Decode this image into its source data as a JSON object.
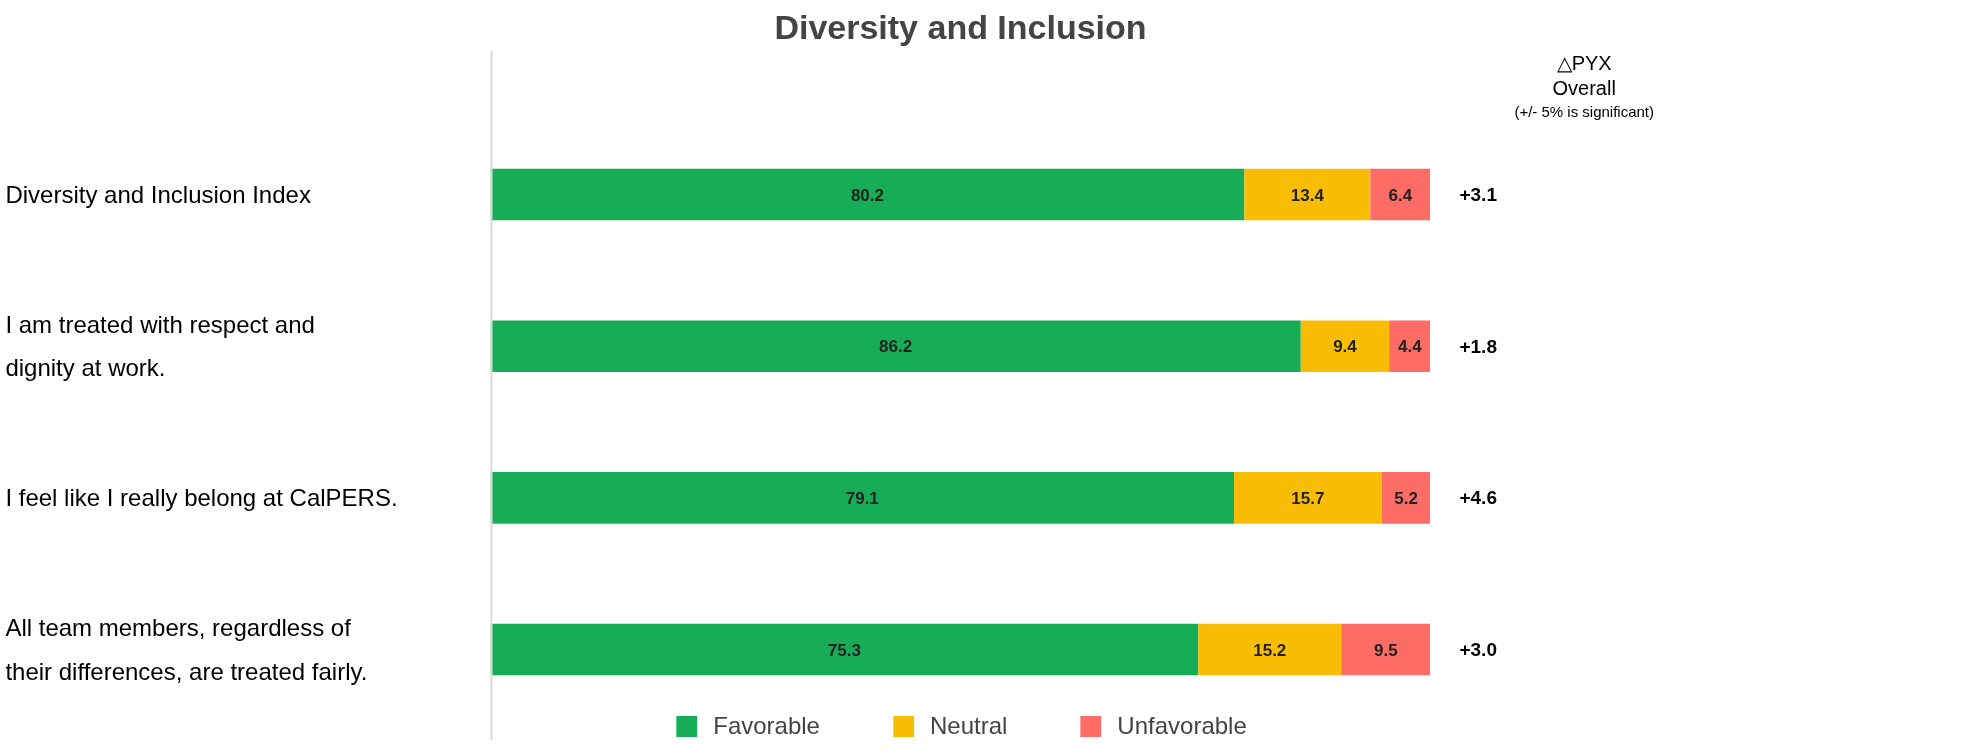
{
  "chart_data": {
    "type": "bar",
    "orientation": "horizontal",
    "stacked": true,
    "title": "Diversity and Inclusion",
    "categories": [
      "Diversity and Inclusion Index",
      "I am treated with respect and\ndignity at work.",
      "I feel like I really belong at CalPERS.",
      "All team members, regardless of\ntheir differences, are treated fairly."
    ],
    "series": [
      {
        "name": "Favorable",
        "color": "#17ad56",
        "values": [
          80.2,
          86.2,
          79.1,
          75.3
        ]
      },
      {
        "name": "Neutral",
        "color": "#f9bd06",
        "values": [
          13.4,
          9.4,
          15.7,
          15.2
        ]
      },
      {
        "name": "Unfavorable",
        "color": "#fd6d66",
        "values": [
          6.4,
          4.4,
          5.2,
          9.5
        ]
      }
    ],
    "xlim": [
      0,
      100
    ],
    "data_labels": true,
    "legend": "bottom",
    "grid": false,
    "tick_labels": "y",
    "annotations": [
      "△PYX",
      "Overall",
      "(+/- 5% is significant)",
      "+3.1",
      "+1.8",
      "+4.6",
      "+3.0"
    ]
  }
}
